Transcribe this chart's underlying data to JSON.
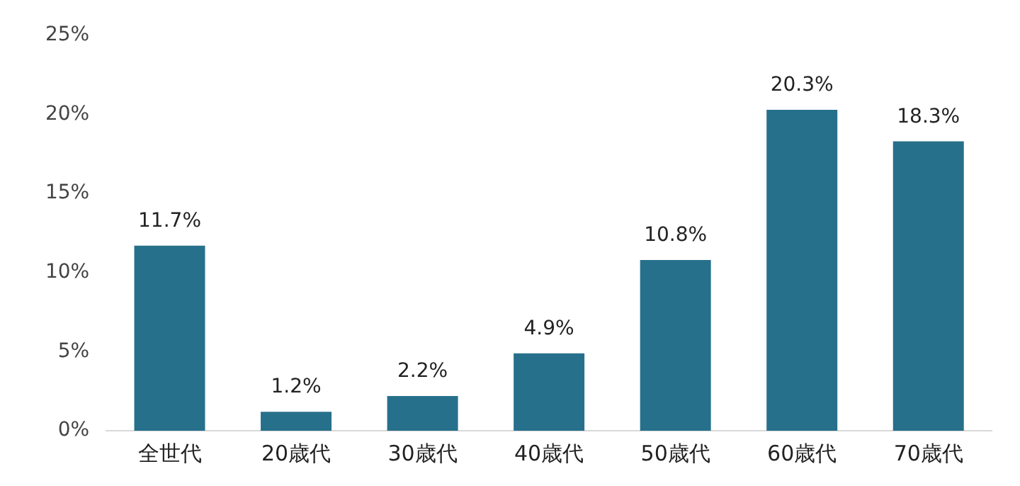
{
  "chart_data": {
    "type": "bar",
    "categories": [
      "全世代",
      "20歳代",
      "30歳代",
      "40歳代",
      "50歳代",
      "60歳代",
      "70歳代"
    ],
    "values": [
      11.7,
      1.2,
      2.2,
      4.9,
      10.8,
      20.3,
      18.3
    ],
    "value_labels": [
      "11.7%",
      "1.2%",
      "2.2%",
      "4.9%",
      "10.8%",
      "20.3%",
      "18.3%"
    ],
    "color": "#27708b",
    "ylim": [
      0,
      25
    ],
    "yticks": [
      {
        "value": 0,
        "label": "0%"
      },
      {
        "value": 5,
        "label": "5%"
      },
      {
        "value": 10,
        "label": "10%"
      },
      {
        "value": 15,
        "label": "15%"
      },
      {
        "value": 20,
        "label": "20%"
      },
      {
        "value": 25,
        "label": "25%"
      }
    ],
    "grid": false,
    "legend": false
  }
}
